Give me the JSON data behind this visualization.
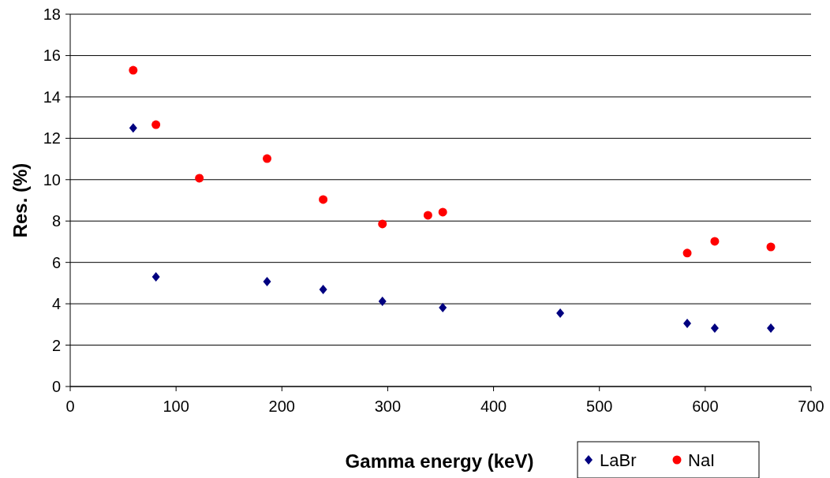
{
  "chart_data": {
    "type": "scatter",
    "xlabel": "Gamma energy (keV)",
    "ylabel": "Res. (%)",
    "xlim": [
      0,
      700
    ],
    "xticks": [
      0,
      100,
      200,
      300,
      400,
      500,
      600,
      700
    ],
    "ylim": [
      0,
      18
    ],
    "yticks": [
      0,
      2,
      4,
      6,
      8,
      10,
      12,
      14,
      16,
      18
    ],
    "grid": "y",
    "legend": "bottom right",
    "series": [
      {
        "name": "LaBr",
        "color": "#000080",
        "marker": "diamond",
        "x": [
          59.5,
          81,
          186,
          239,
          295,
          352,
          463,
          583,
          609,
          662
        ],
        "values": [
          12.5,
          5.3,
          5.07,
          4.69,
          4.12,
          3.81,
          3.55,
          3.05,
          2.82,
          2.82
        ]
      },
      {
        "name": "NaI",
        "color": "#ff0000",
        "marker": "circle",
        "x": [
          59.5,
          81,
          122,
          186,
          239,
          295,
          338,
          352,
          583,
          609,
          662
        ],
        "values": [
          15.29,
          12.66,
          10.07,
          11.02,
          9.04,
          7.86,
          8.28,
          8.43,
          6.45,
          7.02,
          6.75
        ]
      }
    ]
  }
}
